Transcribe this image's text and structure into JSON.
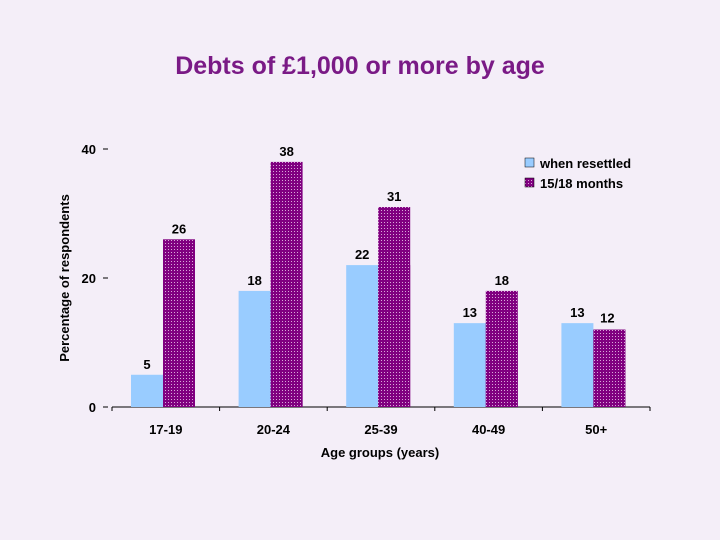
{
  "chart_data": {
    "type": "bar",
    "title": "Debts of £1,000 or more by age",
    "xlabel": "Age groups (years)",
    "ylabel": "Percentage of respondents",
    "ylim": [
      0,
      40
    ],
    "yticks": [
      0,
      20,
      40
    ],
    "categories": [
      "17-19",
      "20-24",
      "25-39",
      "40-49",
      "50+"
    ],
    "series": [
      {
        "name": "when resettled",
        "values": [
          5,
          18,
          22,
          13,
          13
        ],
        "color": "#99ccff"
      },
      {
        "name": "15/18 months",
        "values": [
          26,
          38,
          31,
          18,
          12
        ],
        "color": "#800080"
      }
    ],
    "legend_position": "top-right",
    "grid": false
  }
}
